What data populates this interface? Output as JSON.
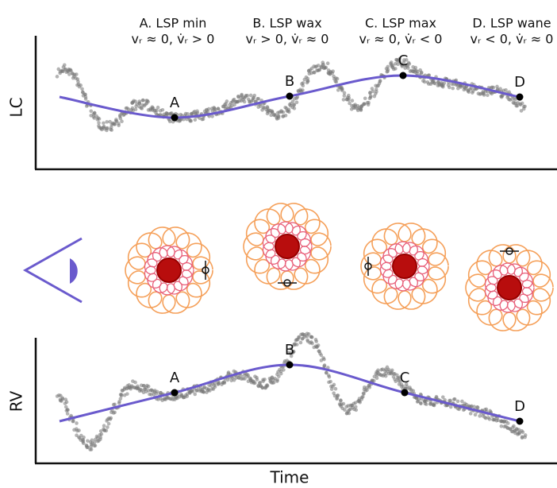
{
  "phases": [
    {
      "title": "A. LSP min",
      "condition": "vᵣ ≈ 0, v̇ᵣ > 0"
    },
    {
      "title": "B. LSP wax",
      "condition": "vᵣ > 0, v̇ᵣ ≈ 0"
    },
    {
      "title": "C. LSP max",
      "condition": "vᵣ ≈ 0, v̇ᵣ < 0"
    },
    {
      "title": "D. LSP wane",
      "condition": "vᵣ < 0, v̇ᵣ ≈ 0"
    }
  ],
  "panels": [
    {
      "ylabel": "LC",
      "points": [
        "A",
        "B",
        "C",
        "D"
      ]
    },
    {
      "ylabel": "RV",
      "points": [
        "A",
        "B",
        "C",
        "D"
      ]
    }
  ],
  "xlabel": "Time"
}
